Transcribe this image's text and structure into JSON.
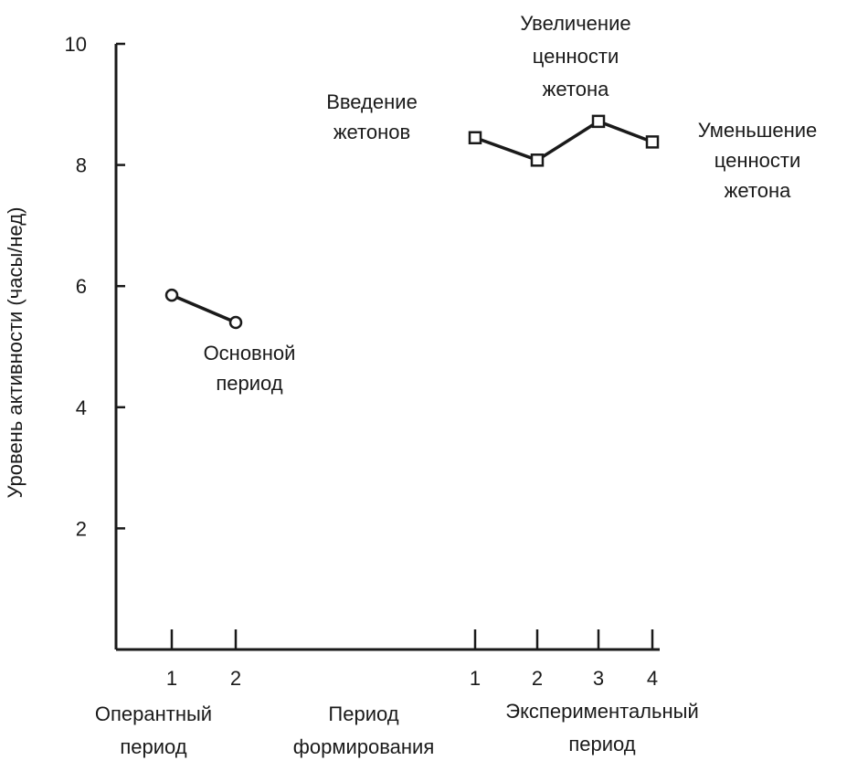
{
  "chart_data": {
    "type": "line",
    "ylabel": "Уровень активности (часы/нед)",
    "ylim": [
      0,
      10
    ],
    "y_ticks": [
      "2",
      "4",
      "6",
      "8",
      "10"
    ],
    "grid": false,
    "phases": [
      {
        "label_lines": [
          "Оперантный",
          "период"
        ],
        "x_ticks": [
          "1",
          "2"
        ]
      },
      {
        "label_lines": [
          "Период",
          "формирования"
        ],
        "x_ticks": []
      },
      {
        "label_lines": [
          "Экспериментальный",
          "период"
        ],
        "x_ticks": [
          "1",
          "2",
          "3",
          "4"
        ]
      }
    ],
    "series": [
      {
        "phase": 0,
        "marker": "circle",
        "x": [
          1,
          2
        ],
        "y": [
          5.85,
          5.4
        ]
      },
      {
        "phase": 2,
        "marker": "square",
        "x": [
          1,
          2,
          3,
          4
        ],
        "y": [
          8.45,
          8.08,
          8.72,
          8.38
        ]
      }
    ],
    "annotations": [
      {
        "key": "base",
        "lines": [
          "Основной",
          "период"
        ]
      },
      {
        "key": "intro",
        "lines": [
          "Введение",
          "жетонов"
        ]
      },
      {
        "key": "increase",
        "lines": [
          "Увеличение",
          "ценности",
          "жетона"
        ]
      },
      {
        "key": "decrease",
        "lines": [
          "Уменьшение",
          "ценности",
          "жетона"
        ]
      }
    ]
  }
}
